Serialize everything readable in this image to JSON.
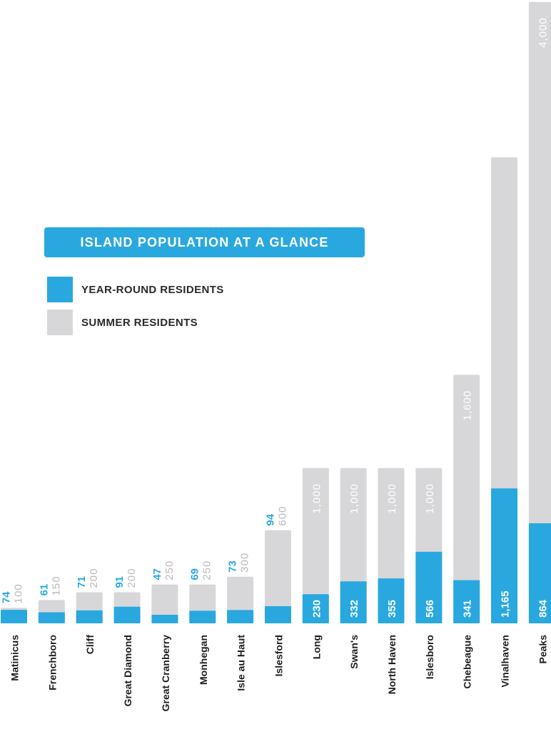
{
  "legend": {
    "title": "ISLAND POPULATION AT A GLANCE",
    "year_round_label": "YEAR-ROUND RESIDENTS",
    "summer_label": "SUMMER RESIDENTS"
  },
  "colors": {
    "year_round": "#29a8e0",
    "summer": "#d7d7d9",
    "summer_label_outside": "#b9b9bb",
    "category_text": "#1e1e1e",
    "inner_label": "#ffffff"
  },
  "chart_data": {
    "type": "bar",
    "stacked": false,
    "note": "summer bar drawn behind, year-round bar overlaid in front",
    "title": "ISLAND POPULATION AT A GLANCE",
    "categories": [
      "Matinicus",
      "Frenchboro",
      "Cliff",
      "Great Diamond",
      "Great Cranberry",
      "Monhegan",
      "Isle au Haut",
      "Islesford",
      "Long",
      "Swan's",
      "North Haven",
      "Islesboro",
      "Chebeague",
      "Vinalhaven",
      "Peaks"
    ],
    "series": [
      {
        "name": "YEAR-ROUND RESIDENTS",
        "values": [
          74,
          61,
          71,
          91,
          47,
          69,
          73,
          94,
          230,
          332,
          355,
          566,
          341,
          1165,
          864
        ],
        "labels": [
          "74",
          "61",
          "71",
          "91",
          "47",
          "69",
          "73",
          "94",
          "230",
          "332",
          "355",
          "566",
          "341",
          "1,165",
          "864"
        ]
      },
      {
        "name": "SUMMER RESIDENTS",
        "values": [
          100,
          150,
          200,
          200,
          250,
          250,
          300,
          600,
          1000,
          1000,
          1000,
          1000,
          1600,
          3000,
          4000
        ],
        "labels": [
          "100",
          "150",
          "200",
          "200",
          "250",
          "250",
          "300",
          "600",
          "1,000",
          "1,000",
          "1,000",
          "1,000",
          "1,600",
          "",
          "4,000"
        ]
      }
    ],
    "xlabel": "",
    "ylabel": "",
    "ylim": [
      0,
      4000
    ],
    "grid": false,
    "legend_position": "middle-left"
  }
}
